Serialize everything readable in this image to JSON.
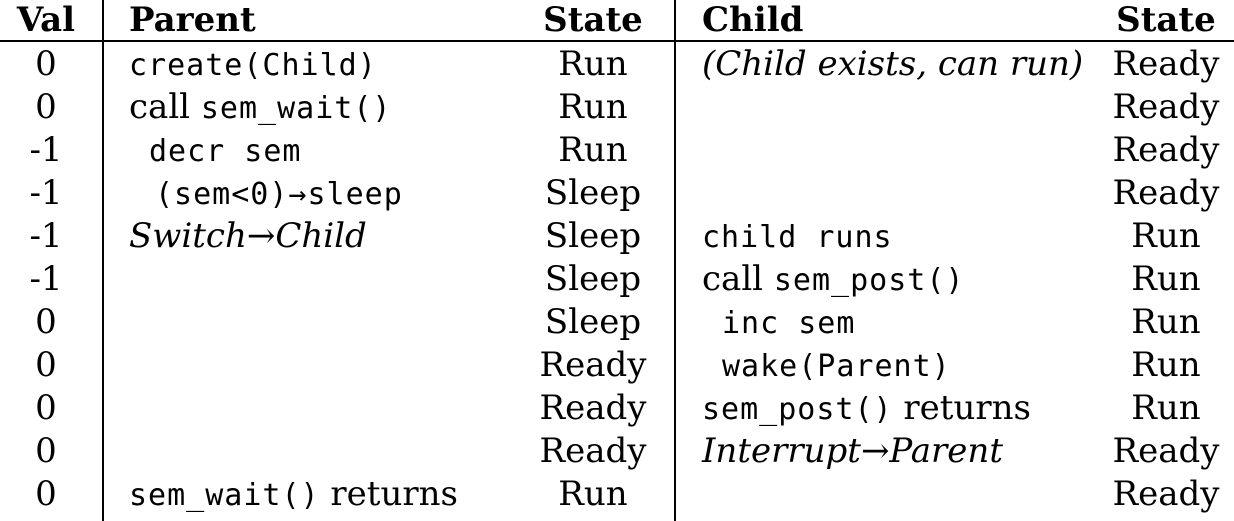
{
  "headers": {
    "val": "Val",
    "parent": "Parent",
    "parent_state": "State",
    "child": "Child",
    "child_state": "State"
  },
  "rows": [
    {
      "val": "0",
      "parent_code": "create(Child)",
      "parent_state": "Run",
      "child_italic": "(Child exists, can run)",
      "child_state": "Ready"
    },
    {
      "val": "0",
      "parent_prefix": "call ",
      "parent_code": "sem_wait()",
      "parent_state": "Run",
      "child_state": "Ready"
    },
    {
      "val": "-1",
      "parent_code": "decr sem",
      "parent_state": "Run",
      "child_state": "Ready"
    },
    {
      "val": "-1",
      "parent_code": "(sem<0)→sleep",
      "parent_state": "Sleep",
      "child_state": "Ready"
    },
    {
      "val": "-1",
      "parent_italic": "Switch→Child",
      "parent_state": "Sleep",
      "child_code": "child runs",
      "child_state": "Run"
    },
    {
      "val": "-1",
      "parent_state": "Sleep",
      "child_prefix": "call ",
      "child_code": "sem_post()",
      "child_state": "Run"
    },
    {
      "val": "0",
      "parent_state": "Sleep",
      "child_code": "inc sem",
      "child_state": "Run"
    },
    {
      "val": "0",
      "parent_state": "Ready",
      "child_code": "wake(Parent)",
      "child_state": "Run"
    },
    {
      "val": "0",
      "parent_state": "Ready",
      "child_code": "sem_post()",
      "child_suffix": " returns",
      "child_state": "Run"
    },
    {
      "val": "0",
      "parent_state": "Ready",
      "child_italic": "Interrupt→Parent",
      "child_state": "Ready"
    },
    {
      "val": "0",
      "parent_code": "sem_wait()",
      "parent_suffix": " returns",
      "parent_state": "Run",
      "child_state": "Ready"
    }
  ]
}
